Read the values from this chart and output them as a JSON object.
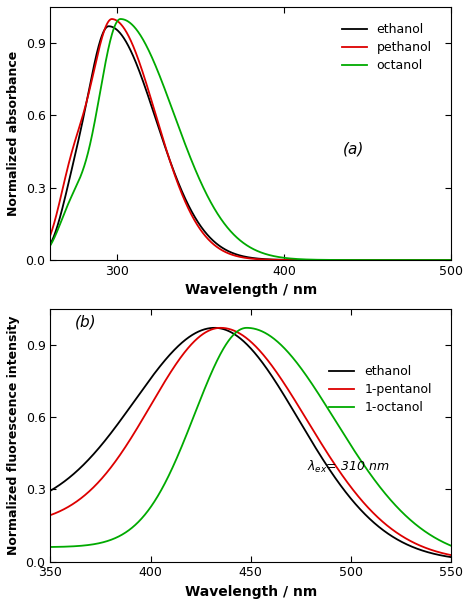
{
  "panel_a": {
    "xlabel": "Wavelength / nm",
    "ylabel": "Normalized absorbance",
    "xlim": [
      260,
      500
    ],
    "ylim": [
      0.0,
      1.05
    ],
    "yticks": [
      0.0,
      0.3,
      0.6,
      0.9
    ],
    "xticks": [
      300,
      400,
      500
    ],
    "label": "(a)",
    "legend": [
      "ethanol",
      "pethanol",
      "octanol"
    ],
    "colors": [
      "#000000",
      "#dd0000",
      "#00aa00"
    ]
  },
  "panel_b": {
    "xlabel": "Wavelength / nm",
    "ylabel": "Normalized fluorescence intensity",
    "xlim": [
      350,
      550
    ],
    "ylim": [
      0.0,
      1.05
    ],
    "yticks": [
      0.0,
      0.3,
      0.6,
      0.9
    ],
    "xticks": [
      350,
      400,
      450,
      500,
      550
    ],
    "label": "(b)",
    "legend": [
      "ethanol",
      "1-pentanol",
      "1-octanol"
    ],
    "colors": [
      "#000000",
      "#dd0000",
      "#00aa00"
    ]
  }
}
